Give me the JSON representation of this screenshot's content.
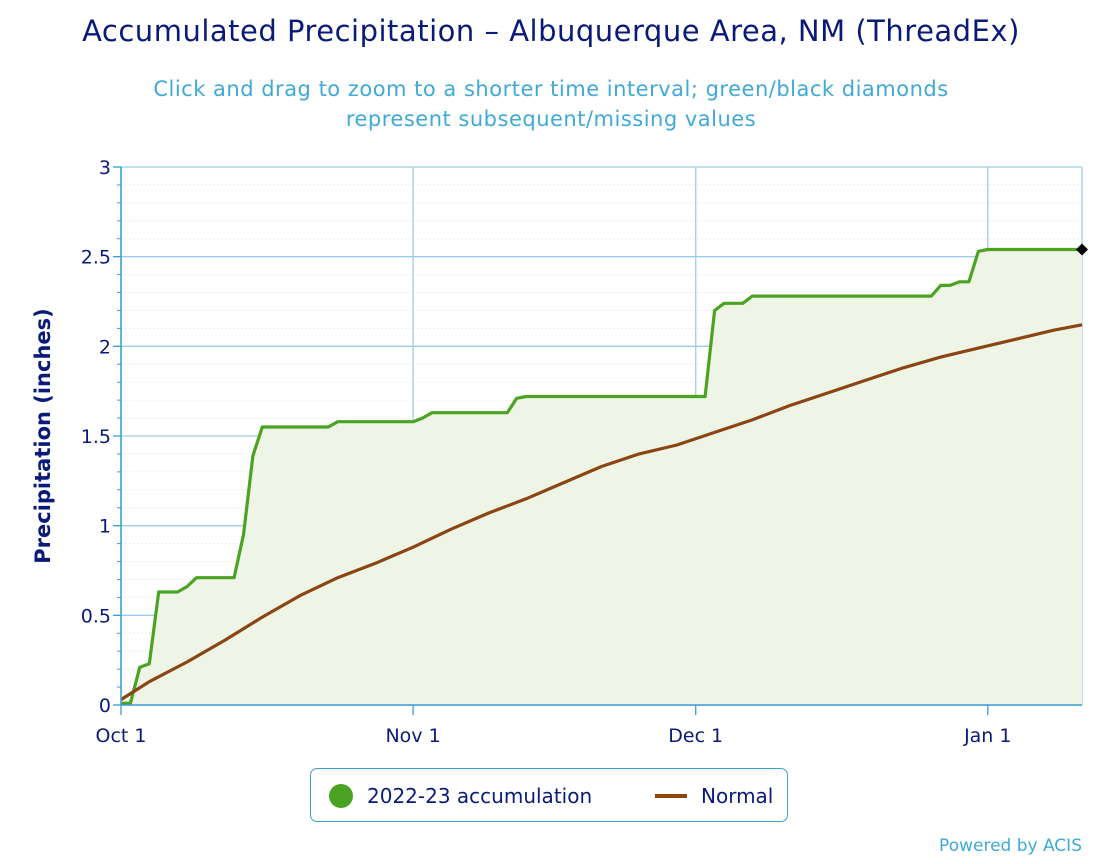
{
  "title": "Accumulated Precipitation – Albuquerque Area, NM (ThreadEx)",
  "subtitle": "Click and drag to zoom to a shorter time interval; green/black diamonds represent subsequent/missing values",
  "credits": "Powered by ACIS",
  "legend": {
    "accumulation_label": "2022-23 accumulation",
    "normal_label": "Normal"
  },
  "chart_data": {
    "type": "line",
    "title": "Accumulated Precipitation – Albuquerque Area, NM (ThreadEx)",
    "xlabel": "",
    "ylabel": "Precipitation (inches)",
    "x_unit": "date",
    "xlim": [
      "2022-10-01",
      "2023-01-11"
    ],
    "ylim": [
      0,
      3
    ],
    "x_ticks": [
      {
        "date": "2022-10-01",
        "label": "Oct 1"
      },
      {
        "date": "2022-11-01",
        "label": "Nov 1"
      },
      {
        "date": "2022-12-01",
        "label": "Dec 1"
      },
      {
        "date": "2023-01-01",
        "label": "Jan 1"
      }
    ],
    "y_ticks": [
      0,
      0.5,
      1,
      1.5,
      2,
      2.5,
      3
    ],
    "y_tick_labels": [
      "0",
      "0.5",
      "1",
      "1.5",
      "2",
      "2.5",
      "3"
    ],
    "grid": true,
    "legend_position": "bottom-center",
    "series": [
      {
        "name": "2022-23 accumulation",
        "color": "#4aa323",
        "fill": "#eef5e6",
        "points": [
          [
            "2022-10-01",
            0.01
          ],
          [
            "2022-10-02",
            0.01
          ],
          [
            "2022-10-03",
            0.21
          ],
          [
            "2022-10-04",
            0.23
          ],
          [
            "2022-10-05",
            0.63
          ],
          [
            "2022-10-07",
            0.63
          ],
          [
            "2022-10-08",
            0.66
          ],
          [
            "2022-10-09",
            0.71
          ],
          [
            "2022-10-13",
            0.71
          ],
          [
            "2022-10-14",
            0.95
          ],
          [
            "2022-10-15",
            1.39
          ],
          [
            "2022-10-16",
            1.55
          ],
          [
            "2022-10-23",
            1.55
          ],
          [
            "2022-10-24",
            1.58
          ],
          [
            "2022-11-01",
            1.58
          ],
          [
            "2022-11-02",
            1.6
          ],
          [
            "2022-11-03",
            1.63
          ],
          [
            "2022-11-11",
            1.63
          ],
          [
            "2022-11-12",
            1.71
          ],
          [
            "2022-11-13",
            1.72
          ],
          [
            "2022-12-02",
            1.72
          ],
          [
            "2022-12-03",
            2.2
          ],
          [
            "2022-12-04",
            2.24
          ],
          [
            "2022-12-06",
            2.24
          ],
          [
            "2022-12-07",
            2.28
          ],
          [
            "2022-12-26",
            2.28
          ],
          [
            "2022-12-27",
            2.34
          ],
          [
            "2022-12-28",
            2.34
          ],
          [
            "2022-12-29",
            2.36
          ],
          [
            "2022-12-30",
            2.36
          ],
          [
            "2022-12-31",
            2.53
          ],
          [
            "2023-01-01",
            2.54
          ],
          [
            "2023-01-11",
            2.54
          ]
        ],
        "marker": {
          "date": "2023-01-11",
          "value": 2.54,
          "color": "#000000",
          "shape": "diamond"
        }
      },
      {
        "name": "Normal",
        "color": "#8b4513",
        "points": [
          [
            "2022-10-01",
            0.03
          ],
          [
            "2022-10-04",
            0.13
          ],
          [
            "2022-10-08",
            0.24
          ],
          [
            "2022-10-12",
            0.36
          ],
          [
            "2022-10-16",
            0.49
          ],
          [
            "2022-10-20",
            0.61
          ],
          [
            "2022-10-24",
            0.71
          ],
          [
            "2022-10-28",
            0.79
          ],
          [
            "2022-11-01",
            0.88
          ],
          [
            "2022-11-05",
            0.98
          ],
          [
            "2022-11-09",
            1.07
          ],
          [
            "2022-11-13",
            1.15
          ],
          [
            "2022-11-17",
            1.24
          ],
          [
            "2022-11-21",
            1.33
          ],
          [
            "2022-11-25",
            1.4
          ],
          [
            "2022-11-29",
            1.45
          ],
          [
            "2022-12-03",
            1.52
          ],
          [
            "2022-12-07",
            1.59
          ],
          [
            "2022-12-11",
            1.67
          ],
          [
            "2022-12-15",
            1.74
          ],
          [
            "2022-12-19",
            1.81
          ],
          [
            "2022-12-23",
            1.88
          ],
          [
            "2022-12-27",
            1.94
          ],
          [
            "2022-12-31",
            1.99
          ],
          [
            "2023-01-04",
            2.04
          ],
          [
            "2023-01-08",
            2.09
          ],
          [
            "2023-01-11",
            2.12
          ]
        ]
      }
    ]
  }
}
